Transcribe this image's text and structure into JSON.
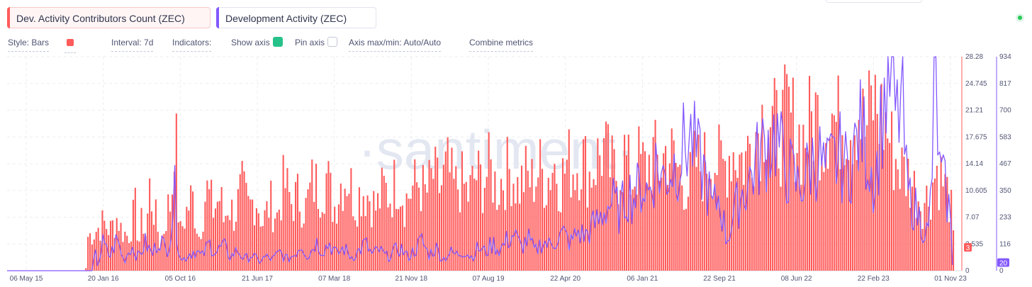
{
  "tabs": [
    {
      "label": "Dev. Activity Contributors Count (ZEC)",
      "color": "#ff5b5b"
    },
    {
      "label": "Development Activity (ZEC)",
      "color": "#8358ff"
    }
  ],
  "toolbar": {
    "style": "Style: Bars",
    "interval": "Interval: 7d",
    "indicators": "Indicators:",
    "show_axis": "Show axis",
    "pin_axis": "Pin axis",
    "axis_maxmin": "Axis max/min: Auto/Auto",
    "combine": "Combine metrics"
  },
  "watermark": "·santiment·",
  "colors": {
    "accent": "#26c289",
    "bars": "#ff5b5b",
    "line": "#8358ff",
    "grid": "#ebedf2"
  },
  "chart_data": {
    "type": "bar",
    "x_ticks": [
      "06 May 15",
      "20 Jan 16",
      "05 Oct 16",
      "21 Jun 17",
      "07 Mar 18",
      "21 Nov 18",
      "07 Aug 19",
      "22 Apr 20",
      "06 Jan 21",
      "22 Sep 21",
      "08 Jun 22",
      "22 Feb 23",
      "01 Nov 23"
    ],
    "grid": true,
    "series": [
      {
        "name": "Dev. Activity Contributors Count (ZEC)",
        "type": "bar",
        "axis": "right-1",
        "ylim": [
          0,
          28.28
        ],
        "y_ticks": [
          "28.28",
          "24.745",
          "21.21",
          "17.675",
          "14.14",
          "10.605",
          "7.07",
          "3.535",
          "0"
        ],
        "last_value": "3",
        "keypoints": [
          [
            0,
            0
          ],
          [
            110,
            0
          ],
          [
            113,
            5
          ],
          [
            125,
            6
          ],
          [
            135,
            7
          ],
          [
            145,
            6
          ],
          [
            155,
            8
          ],
          [
            160,
            6
          ],
          [
            170,
            5
          ],
          [
            180,
            9
          ],
          [
            185,
            4
          ],
          [
            190,
            8
          ],
          [
            195,
            5
          ],
          [
            200,
            12
          ],
          [
            210,
            7
          ],
          [
            215,
            4
          ],
          [
            220,
            6
          ],
          [
            225,
            9
          ],
          [
            230,
            10
          ],
          [
            233,
            14
          ],
          [
            235,
            22
          ],
          [
            238,
            17
          ],
          [
            242,
            5
          ],
          [
            250,
            8
          ],
          [
            260,
            11
          ],
          [
            270,
            5
          ],
          [
            280,
            12
          ],
          [
            290,
            9
          ],
          [
            300,
            11
          ],
          [
            305,
            7
          ],
          [
            310,
            10
          ],
          [
            320,
            8
          ],
          [
            330,
            12
          ],
          [
            340,
            9
          ],
          [
            350,
            11
          ],
          [
            360,
            7
          ],
          [
            370,
            10
          ],
          [
            380,
            8
          ],
          [
            390,
            13
          ],
          [
            400,
            10
          ],
          [
            410,
            11
          ],
          [
            420,
            9
          ],
          [
            430,
            13
          ],
          [
            440,
            12
          ],
          [
            450,
            14
          ],
          [
            460,
            9
          ],
          [
            470,
            13
          ],
          [
            480,
            14
          ],
          [
            490,
            10
          ],
          [
            500,
            12
          ],
          [
            510,
            11
          ],
          [
            520,
            9
          ],
          [
            530,
            12
          ],
          [
            540,
            11
          ],
          [
            550,
            14
          ],
          [
            560,
            10
          ],
          [
            570,
            12
          ],
          [
            580,
            13
          ],
          [
            590,
            11
          ],
          [
            600,
            14
          ],
          [
            610,
            12
          ],
          [
            620,
            15
          ],
          [
            630,
            12
          ],
          [
            640,
            13
          ],
          [
            650,
            11
          ],
          [
            660,
            14
          ],
          [
            670,
            13
          ],
          [
            680,
            15
          ],
          [
            690,
            12
          ],
          [
            700,
            14
          ],
          [
            710,
            15
          ],
          [
            720,
            12
          ],
          [
            730,
            14
          ],
          [
            740,
            13
          ],
          [
            750,
            15
          ],
          [
            760,
            13
          ],
          [
            770,
            16
          ],
          [
            780,
            13
          ],
          [
            790,
            16
          ],
          [
            800,
            15
          ],
          [
            810,
            17
          ],
          [
            820,
            14
          ],
          [
            830,
            16
          ],
          [
            840,
            18
          ],
          [
            850,
            15
          ],
          [
            860,
            14
          ],
          [
            870,
            17
          ],
          [
            880,
            13
          ],
          [
            890,
            16
          ],
          [
            900,
            15
          ],
          [
            910,
            17
          ],
          [
            920,
            15
          ],
          [
            930,
            18
          ],
          [
            940,
            16
          ],
          [
            950,
            14
          ],
          [
            960,
            12
          ],
          [
            970,
            16
          ],
          [
            980,
            15
          ],
          [
            990,
            17
          ],
          [
            1000,
            16
          ],
          [
            1010,
            15
          ],
          [
            1020,
            18
          ],
          [
            1030,
            17
          ],
          [
            1040,
            16
          ],
          [
            1050,
            20
          ],
          [
            1060,
            21
          ],
          [
            1070,
            24
          ],
          [
            1080,
            21
          ],
          [
            1090,
            20
          ],
          [
            1100,
            23
          ],
          [
            1110,
            21
          ],
          [
            1120,
            19
          ],
          [
            1130,
            21
          ],
          [
            1140,
            23
          ],
          [
            1150,
            20
          ],
          [
            1160,
            24
          ],
          [
            1170,
            21
          ],
          [
            1180,
            23
          ],
          [
            1190,
            22
          ],
          [
            1200,
            24
          ],
          [
            1210,
            20
          ],
          [
            1220,
            25
          ],
          [
            1230,
            23
          ],
          [
            1240,
            21
          ],
          [
            1250,
            17
          ],
          [
            1260,
            15
          ],
          [
            1270,
            14
          ],
          [
            1280,
            12
          ],
          [
            1290,
            10
          ],
          [
            1300,
            11
          ],
          [
            1310,
            15
          ],
          [
            1320,
            13
          ],
          [
            1330,
            10
          ],
          [
            1336,
            3
          ]
        ]
      },
      {
        "name": "Development Activity (ZEC)",
        "type": "line",
        "axis": "right-2",
        "ylim": [
          0,
          934
        ],
        "y_ticks": [
          "934",
          "817",
          "700",
          "583",
          "467",
          "350",
          "233",
          "116",
          "0"
        ],
        "last_value": "20",
        "keypoints": [
          [
            0,
            0
          ],
          [
            120,
            0
          ],
          [
            124,
            80
          ],
          [
            128,
            20
          ],
          [
            135,
            120
          ],
          [
            145,
            60
          ],
          [
            155,
            140
          ],
          [
            165,
            40
          ],
          [
            175,
            110
          ],
          [
            185,
            60
          ],
          [
            195,
            120
          ],
          [
            205,
            70
          ],
          [
            215,
            150
          ],
          [
            225,
            80
          ],
          [
            232,
            200
          ],
          [
            236,
            360
          ],
          [
            240,
            150
          ],
          [
            246,
            40
          ],
          [
            255,
            70
          ],
          [
            265,
            90
          ],
          [
            275,
            60
          ],
          [
            285,
            120
          ],
          [
            295,
            80
          ],
          [
            305,
            110
          ],
          [
            315,
            60
          ],
          [
            325,
            90
          ],
          [
            335,
            50
          ],
          [
            345,
            70
          ],
          [
            355,
            40
          ],
          [
            365,
            60
          ],
          [
            375,
            50
          ],
          [
            385,
            80
          ],
          [
            395,
            50
          ],
          [
            405,
            70
          ],
          [
            415,
            120
          ],
          [
            425,
            60
          ],
          [
            435,
            130
          ],
          [
            445,
            90
          ],
          [
            455,
            120
          ],
          [
            465,
            70
          ],
          [
            475,
            100
          ],
          [
            485,
            60
          ],
          [
            495,
            80
          ],
          [
            505,
            120
          ],
          [
            515,
            70
          ],
          [
            525,
            90
          ],
          [
            535,
            60
          ],
          [
            545,
            80
          ],
          [
            555,
            100
          ],
          [
            565,
            60
          ],
          [
            575,
            90
          ],
          [
            585,
            130
          ],
          [
            595,
            70
          ],
          [
            605,
            100
          ],
          [
            615,
            50
          ],
          [
            625,
            80
          ],
          [
            635,
            70
          ],
          [
            645,
            90
          ],
          [
            655,
            60
          ],
          [
            665,
            100
          ],
          [
            675,
            80
          ],
          [
            685,
            120
          ],
          [
            695,
            90
          ],
          [
            705,
            130
          ],
          [
            715,
            160
          ],
          [
            725,
            100
          ],
          [
            735,
            140
          ],
          [
            745,
            80
          ],
          [
            755,
            130
          ],
          [
            765,
            110
          ],
          [
            775,
            140
          ],
          [
            785,
            160
          ],
          [
            795,
            120
          ],
          [
            805,
            170
          ],
          [
            815,
            150
          ],
          [
            825,
            190
          ],
          [
            835,
            220
          ],
          [
            845,
            280
          ],
          [
            855,
            300
          ],
          [
            865,
            250
          ],
          [
            875,
            350
          ],
          [
            885,
            320
          ],
          [
            895,
            380
          ],
          [
            905,
            340
          ],
          [
            915,
            460
          ],
          [
            925,
            400
          ],
          [
            935,
            440
          ],
          [
            945,
            480
          ],
          [
            955,
            540
          ],
          [
            965,
            580
          ],
          [
            975,
            480
          ],
          [
            985,
            420
          ],
          [
            995,
            260
          ],
          [
            1005,
            330
          ],
          [
            1015,
            130
          ],
          [
            1025,
            240
          ],
          [
            1035,
            330
          ],
          [
            1045,
            380
          ],
          [
            1055,
            460
          ],
          [
            1065,
            520
          ],
          [
            1075,
            570
          ],
          [
            1085,
            600
          ],
          [
            1095,
            470
          ],
          [
            1105,
            430
          ],
          [
            1115,
            370
          ],
          [
            1125,
            400
          ],
          [
            1135,
            480
          ],
          [
            1145,
            500
          ],
          [
            1155,
            420
          ],
          [
            1165,
            470
          ],
          [
            1175,
            500
          ],
          [
            1185,
            440
          ],
          [
            1195,
            520
          ],
          [
            1205,
            620
          ],
          [
            1215,
            500
          ],
          [
            1225,
            380
          ],
          [
            1235,
            700
          ],
          [
            1245,
            860
          ],
          [
            1255,
            640
          ],
          [
            1262,
            760
          ],
          [
            1270,
            340
          ],
          [
            1280,
            280
          ],
          [
            1290,
            210
          ],
          [
            1300,
            160
          ],
          [
            1305,
            440
          ],
          [
            1310,
            930
          ],
          [
            1315,
            420
          ],
          [
            1322,
            370
          ],
          [
            1330,
            260
          ],
          [
            1334,
            20
          ]
        ]
      }
    ]
  }
}
